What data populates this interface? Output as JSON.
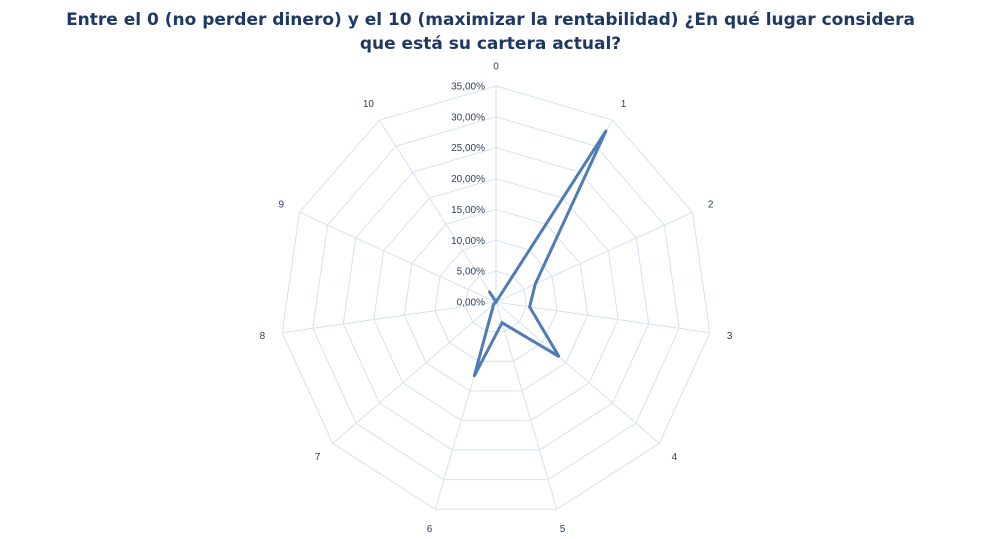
{
  "chart_data": {
    "type": "radar",
    "title_line1": "Entre el 0 (no perder dinero) y el 10 (maximizar la rentabilidad) ¿En qué lugar considera",
    "title_line2": "que está su cartera actual?",
    "categories": [
      "0",
      "1",
      "2",
      "3",
      "4",
      "5",
      "6",
      "7",
      "8",
      "9",
      "10"
    ],
    "series": [
      {
        "values": [
          0.0,
          33.0,
          7.0,
          5.5,
          13.5,
          3.5,
          12.5,
          0.5,
          0.0,
          0.0,
          2.0
        ]
      }
    ],
    "rlim": [
      0,
      35
    ],
    "ticks": [
      0,
      5,
      10,
      15,
      20,
      25,
      30,
      35
    ],
    "tick_labels": [
      "0,00%",
      "5,00%",
      "10,00%",
      "15,00%",
      "20,00%",
      "25,00%",
      "30,00%",
      "35,00%"
    ],
    "grid": true,
    "colors": {
      "series": "#4f7cb4",
      "grid": "#d6e2ef",
      "text": "#2e3f5c",
      "title": "#1f3864"
    }
  }
}
